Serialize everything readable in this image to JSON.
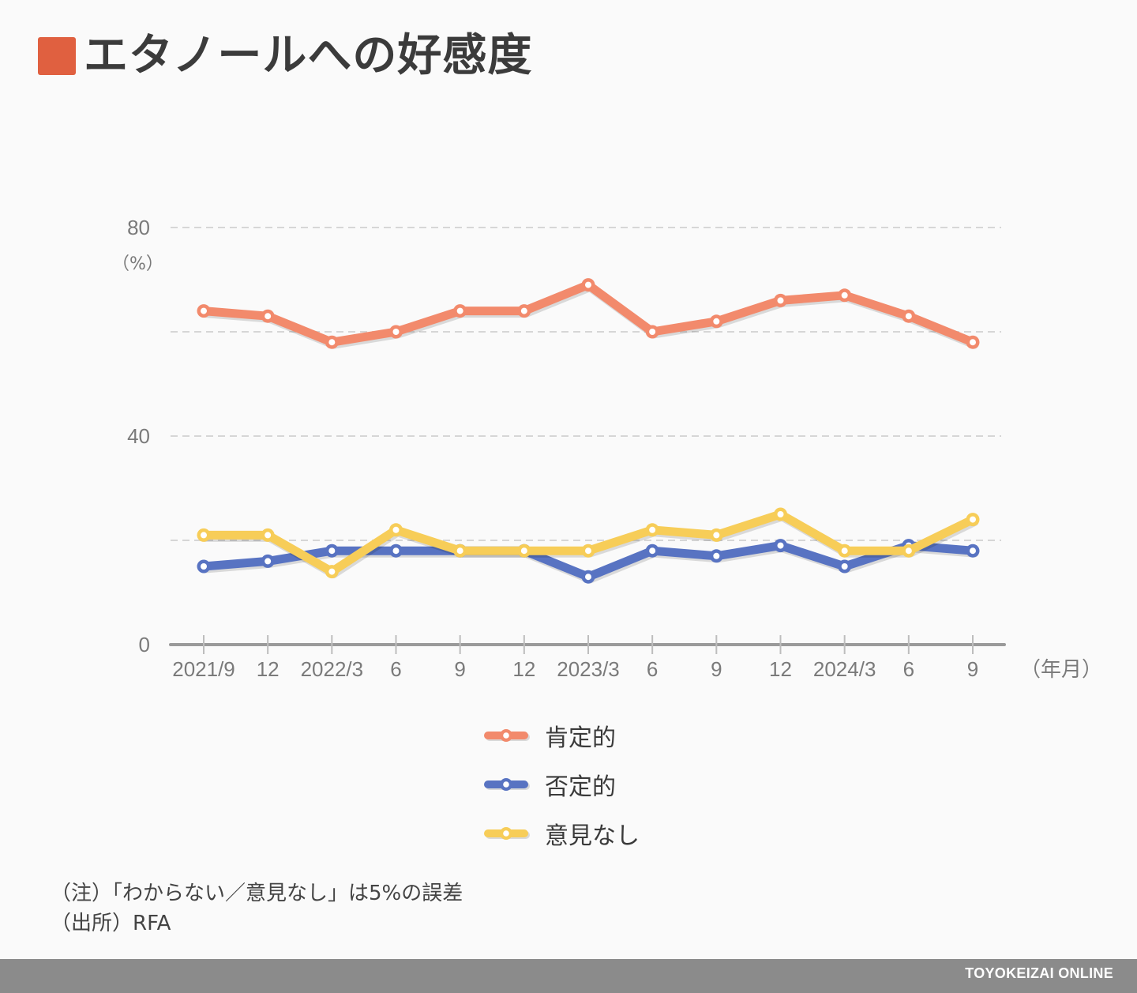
{
  "header": {
    "title": "エタノールへの好感度",
    "accent_color": "#e06040"
  },
  "chart_data": {
    "type": "line",
    "title": "エタノールへの好感度",
    "xlabel": "（年月）",
    "ylabel": "（%）",
    "ylim": [
      0,
      80
    ],
    "yticks": [
      0,
      20,
      40,
      60,
      80
    ],
    "ytick_labels": [
      "0",
      "",
      "40",
      "",
      "80"
    ],
    "grid": true,
    "categories": [
      "2021/9",
      "12",
      "2022/3",
      "6",
      "9",
      "12",
      "2023/3",
      "6",
      "9",
      "12",
      "2024/3",
      "6",
      "9"
    ],
    "series": [
      {
        "name": "肯定的",
        "color": "#f28a6c",
        "values": [
          64,
          63,
          58,
          60,
          64,
          64,
          69,
          60,
          62,
          66,
          67,
          63,
          58
        ]
      },
      {
        "name": "否定的",
        "color": "#5873c2",
        "values": [
          15,
          16,
          18,
          18,
          18,
          18,
          13,
          18,
          17,
          19,
          15,
          19,
          18
        ]
      },
      {
        "name": "意見なし",
        "color": "#f7cd58",
        "values": [
          21,
          21,
          14,
          22,
          18,
          18,
          18,
          22,
          21,
          25,
          18,
          18,
          24
        ]
      }
    ],
    "legend_position": "bottom-center"
  },
  "notes": {
    "note": "（注）「わからない／意見なし」は5%の誤差",
    "source": "（出所）RFA"
  },
  "footer": {
    "brand": "TOYOKEIZAI ONLINE"
  }
}
